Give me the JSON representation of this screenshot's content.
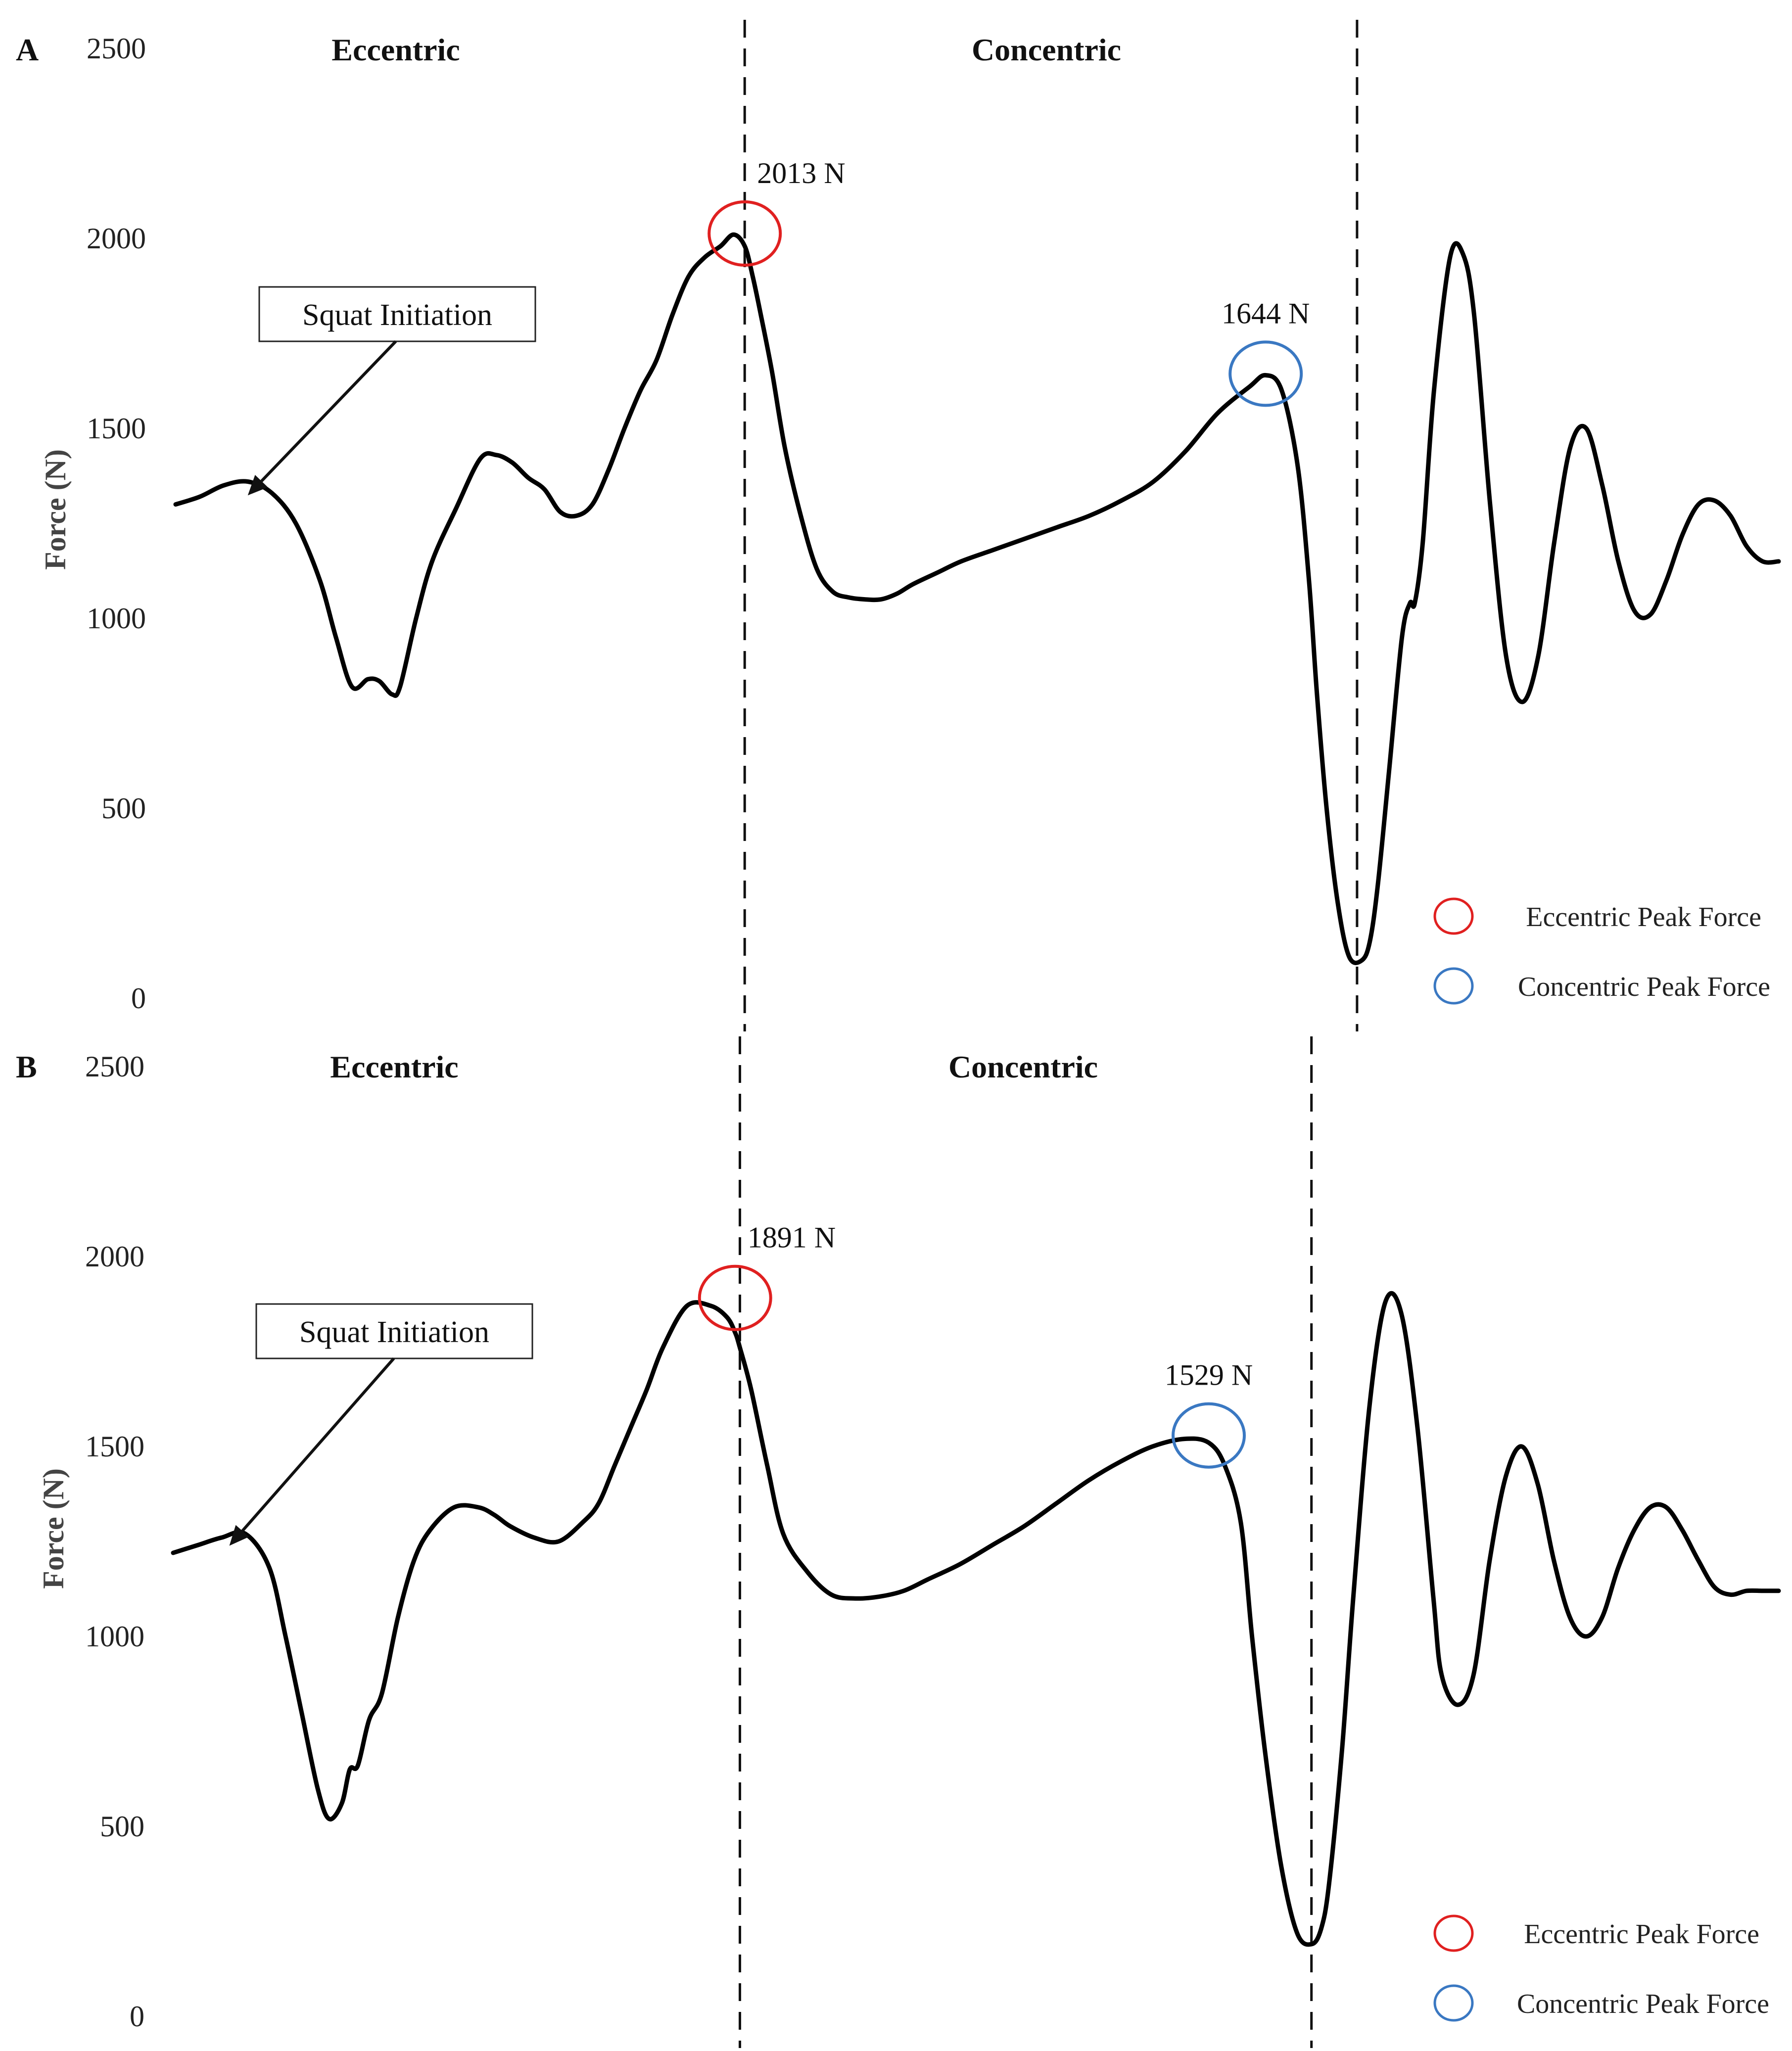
{
  "chart_data": [
    {
      "type": "line",
      "panel_label": "A",
      "ylabel": "Force (N)",
      "ylim": [
        0,
        2500
      ],
      "yticks": [
        "0",
        "500",
        "1000",
        "1500",
        "2000",
        "2500"
      ],
      "phases": [
        {
          "label": "Eccentric"
        },
        {
          "label": "Concentric"
        }
      ],
      "phase_boundaries_x": [
        0.355,
        0.737
      ],
      "x": [
        0.0,
        0.015,
        0.03,
        0.045,
        0.06,
        0.075,
        0.09,
        0.1,
        0.11,
        0.12,
        0.127,
        0.135,
        0.14,
        0.15,
        0.16,
        0.175,
        0.19,
        0.2,
        0.21,
        0.22,
        0.23,
        0.24,
        0.25,
        0.26,
        0.27,
        0.28,
        0.29,
        0.3,
        0.31,
        0.32,
        0.33,
        0.34,
        0.348,
        0.355,
        0.36,
        0.365,
        0.372,
        0.38,
        0.39,
        0.4,
        0.41,
        0.42,
        0.43,
        0.44,
        0.45,
        0.46,
        0.475,
        0.49,
        0.51,
        0.53,
        0.55,
        0.57,
        0.59,
        0.61,
        0.63,
        0.65,
        0.67,
        0.68,
        0.69,
        0.7,
        0.707,
        0.712,
        0.718,
        0.725,
        0.732,
        0.74,
        0.745,
        0.75,
        0.757,
        0.765,
        0.77,
        0.773,
        0.778,
        0.785,
        0.795,
        0.803,
        0.81,
        0.82,
        0.83,
        0.84,
        0.85,
        0.86,
        0.87,
        0.88,
        0.89,
        0.9,
        0.91,
        0.92,
        0.93,
        0.94,
        0.95,
        0.96,
        0.97,
        0.98,
        0.99,
        1.0
      ],
      "series": [
        {
          "name": "Force",
          "values": [
            1300,
            1320,
            1350,
            1360,
            1330,
            1250,
            1100,
            950,
            820,
            840,
            835,
            800,
            820,
            1000,
            1150,
            1290,
            1420,
            1430,
            1410,
            1370,
            1340,
            1280,
            1270,
            1300,
            1390,
            1500,
            1600,
            1680,
            1800,
            1900,
            1950,
            1980,
            2010,
            1980,
            1900,
            1800,
            1650,
            1450,
            1270,
            1130,
            1070,
            1055,
            1050,
            1050,
            1065,
            1090,
            1120,
            1150,
            1180,
            1210,
            1240,
            1270,
            1310,
            1360,
            1440,
            1540,
            1610,
            1640,
            1600,
            1400,
            1100,
            800,
            500,
            250,
            110,
            100,
            150,
            300,
            600,
            950,
            1040,
            1040,
            1200,
            1600,
            1950,
            1960,
            1800,
            1300,
            900,
            780,
            900,
            1200,
            1450,
            1500,
            1350,
            1150,
            1020,
            1010,
            1100,
            1220,
            1300,
            1310,
            1270,
            1190,
            1150,
            1150
          ]
        }
      ],
      "annotations": {
        "initiation": "Squat Initiation",
        "eccentric_peak": "2013 N",
        "concentric_peak": "1644 N"
      },
      "peak_points": {
        "eccentric": {
          "x": 0.355,
          "y": 2013
        },
        "concentric": {
          "x": 0.68,
          "y": 1644
        },
        "initiation": {
          "x": 0.045,
          "y": 1355
        }
      },
      "legend": {
        "placement": "bottom-right",
        "entries": [
          {
            "label": "Eccentric Peak Force",
            "color": "#e02020"
          },
          {
            "label": "Concentric Peak Force",
            "color": "#3a78c2"
          }
        ]
      }
    },
    {
      "type": "line",
      "panel_label": "B",
      "ylabel": "Force (N)",
      "ylim": [
        0,
        2500
      ],
      "yticks": [
        "0",
        "500",
        "1000",
        "1500",
        "2000",
        "2500"
      ],
      "phases": [
        {
          "label": "Eccentric"
        },
        {
          "label": "Concentric"
        }
      ],
      "phase_boundaries_x": [
        0.353,
        0.709
      ],
      "x": [
        0.0,
        0.015,
        0.03,
        0.045,
        0.06,
        0.07,
        0.08,
        0.09,
        0.097,
        0.105,
        0.11,
        0.115,
        0.122,
        0.13,
        0.14,
        0.15,
        0.16,
        0.175,
        0.19,
        0.2,
        0.21,
        0.225,
        0.24,
        0.255,
        0.265,
        0.275,
        0.285,
        0.295,
        0.305,
        0.32,
        0.335,
        0.345,
        0.35,
        0.353,
        0.36,
        0.37,
        0.38,
        0.395,
        0.41,
        0.425,
        0.44,
        0.455,
        0.47,
        0.49,
        0.51,
        0.53,
        0.55,
        0.57,
        0.59,
        0.61,
        0.63,
        0.645,
        0.655,
        0.665,
        0.672,
        0.68,
        0.69,
        0.7,
        0.709,
        0.715,
        0.72,
        0.728,
        0.735,
        0.745,
        0.755,
        0.765,
        0.775,
        0.785,
        0.79,
        0.8,
        0.81,
        0.82,
        0.83,
        0.84,
        0.85,
        0.86,
        0.87,
        0.88,
        0.89,
        0.9,
        0.91,
        0.92,
        0.93,
        0.94,
        0.95,
        0.96,
        0.97,
        0.98,
        0.99,
        1.0
      ],
      "series": [
        {
          "name": "Force",
          "values": [
            1220,
            1240,
            1260,
            1270,
            1180,
            1000,
            800,
            600,
            520,
            560,
            650,
            660,
            780,
            850,
            1050,
            1200,
            1280,
            1340,
            1340,
            1320,
            1290,
            1260,
            1250,
            1300,
            1350,
            1450,
            1550,
            1650,
            1760,
            1870,
            1870,
            1840,
            1800,
            1760,
            1650,
            1450,
            1270,
            1170,
            1110,
            1100,
            1105,
            1120,
            1150,
            1190,
            1240,
            1290,
            1350,
            1410,
            1460,
            1500,
            1520,
            1510,
            1450,
            1300,
            1000,
            700,
            400,
            220,
            190,
            230,
            350,
            700,
            1100,
            1600,
            1880,
            1850,
            1550,
            1100,
            900,
            820,
            900,
            1200,
            1420,
            1500,
            1400,
            1200,
            1050,
            1000,
            1050,
            1180,
            1280,
            1340,
            1340,
            1280,
            1200,
            1130,
            1110,
            1120,
            1120,
            1120
          ]
        }
      ],
      "annotations": {
        "initiation": "Squat Initiation",
        "eccentric_peak": "1891 N",
        "concentric_peak": "1529 N"
      },
      "peak_points": {
        "eccentric": {
          "x": 0.35,
          "y": 1891
        },
        "concentric": {
          "x": 0.645,
          "y": 1529
        },
        "initiation": {
          "x": 0.035,
          "y": 1270
        }
      },
      "legend": {
        "placement": "bottom-right",
        "entries": [
          {
            "label": "Eccentric Peak Force",
            "color": "#e02020"
          },
          {
            "label": "Concentric Peak Force",
            "color": "#3a78c2"
          }
        ]
      }
    }
  ]
}
